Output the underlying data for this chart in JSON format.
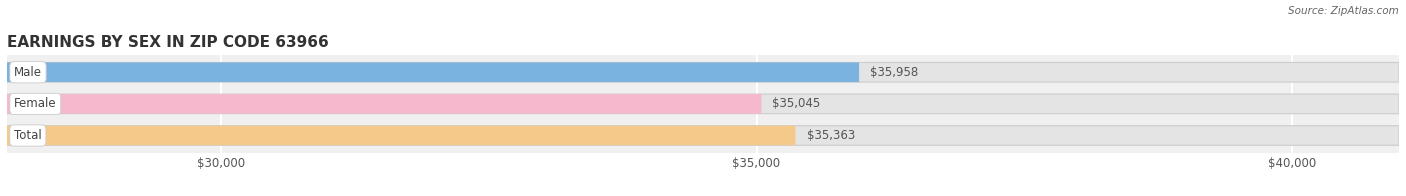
{
  "title": "EARNINGS BY SEX IN ZIP CODE 63966",
  "source": "Source: ZipAtlas.com",
  "categories": [
    "Male",
    "Female",
    "Total"
  ],
  "values": [
    35958,
    35045,
    35363
  ],
  "bar_colors": [
    "#7ab3e0",
    "#f5b8cc",
    "#f5c98a"
  ],
  "value_labels": [
    "$35,958",
    "$35,045",
    "$35,363"
  ],
  "xlim_min": 28000,
  "xlim_max": 41000,
  "xticks": [
    30000,
    35000,
    40000
  ],
  "xtick_labels": [
    "$30,000",
    "$35,000",
    "$40,000"
  ],
  "title_fontsize": 11,
  "bar_height": 0.62,
  "bar_gap": 0.12,
  "fig_bg_color": "#ffffff",
  "axis_bg_color": "#f0f0f0",
  "bar_bg_color": "#e4e4e4",
  "grid_color": "#ffffff",
  "label_pill_color": "#ffffff",
  "text_color": "#555555",
  "value_text_color": "#555555"
}
